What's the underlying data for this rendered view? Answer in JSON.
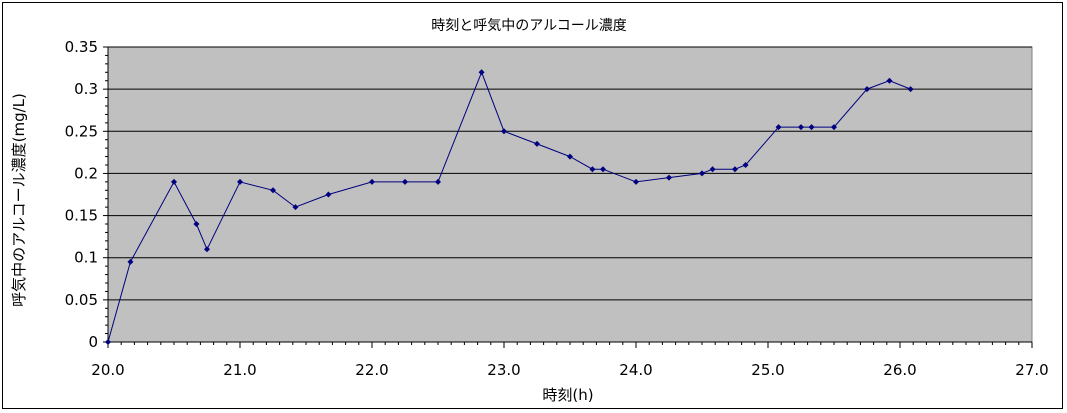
{
  "chart_data": {
    "type": "line",
    "title": "時刻と呼気中のアルコール濃度",
    "xlabel": "時刻(h)",
    "ylabel": "呼気中のアルコール濃度(mg/L)",
    "xlim": [
      20,
      27
    ],
    "ylim": [
      0,
      0.35
    ],
    "x_ticks": [
      "20.0",
      "21.0",
      "22.0",
      "23.0",
      "24.0",
      "25.0",
      "26.0",
      "27.0"
    ],
    "y_ticks": [
      "0",
      "0.05",
      "0.1",
      "0.15",
      "0.2",
      "0.25",
      "0.3",
      "0.35"
    ],
    "grid": "horizontal",
    "legend": "none",
    "colors": {
      "plot_bg": "#c0c0c0",
      "line": "#000080",
      "grid": "#000000"
    },
    "series": [
      {
        "x": [
          20.0,
          20.17,
          20.5,
          20.67,
          20.75,
          21.0,
          21.25,
          21.42,
          21.67,
          22.0,
          22.25,
          22.5,
          22.83,
          23.0,
          23.25,
          23.5,
          23.67,
          23.75,
          24.0,
          24.25,
          24.5,
          24.58,
          24.75,
          24.83,
          25.08,
          25.25,
          25.33,
          25.5,
          25.75,
          25.92,
          26.08
        ],
        "y": [
          0.0,
          0.095,
          0.19,
          0.14,
          0.11,
          0.19,
          0.18,
          0.16,
          0.175,
          0.19,
          0.19,
          0.19,
          0.32,
          0.25,
          0.235,
          0.22,
          0.205,
          0.205,
          0.19,
          0.195,
          0.2,
          0.205,
          0.205,
          0.21,
          0.255,
          0.255,
          0.255,
          0.255,
          0.3,
          0.31,
          0.3
        ]
      }
    ]
  }
}
